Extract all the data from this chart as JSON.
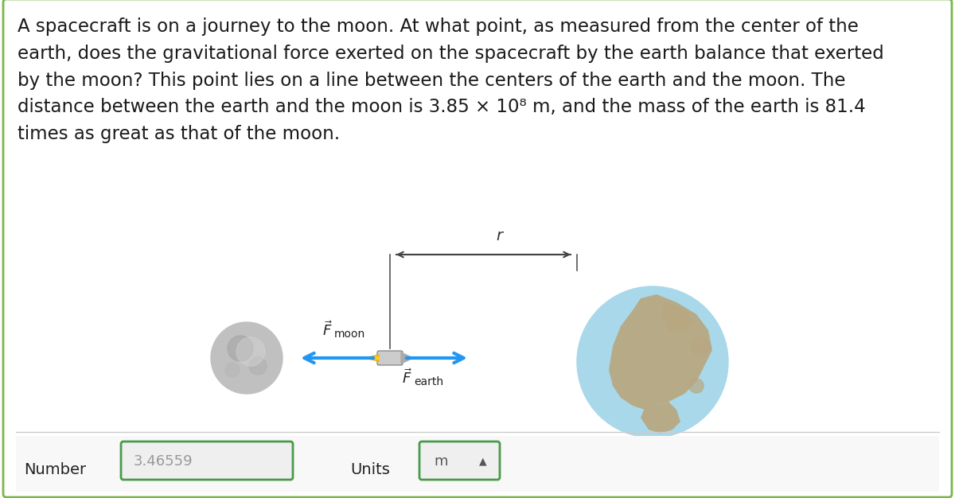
{
  "background_color": "#ffffff",
  "border_color": "#7ab648",
  "text_question": "A spacecraft is on a journey to the moon. At what point, as measured from the center of the\nearth, does the gravitational force exerted on the spacecraft by the earth balance that exerted\nby the moon? This point lies on a line between the centers of the earth and the moon. The\ndistance between the earth and the moon is 3.85 × 10⁸ m, and the mass of the earth is 81.4\ntimes as great as that of the moon.",
  "number_label": "Number",
  "number_value": "3.46559",
  "units_label": "Units",
  "units_value": "m",
  "text_color": "#1a1a1a",
  "question_fontsize": 16.5,
  "arrow_color": "#2196F3",
  "bottom_border_color": "#4a9a4a"
}
